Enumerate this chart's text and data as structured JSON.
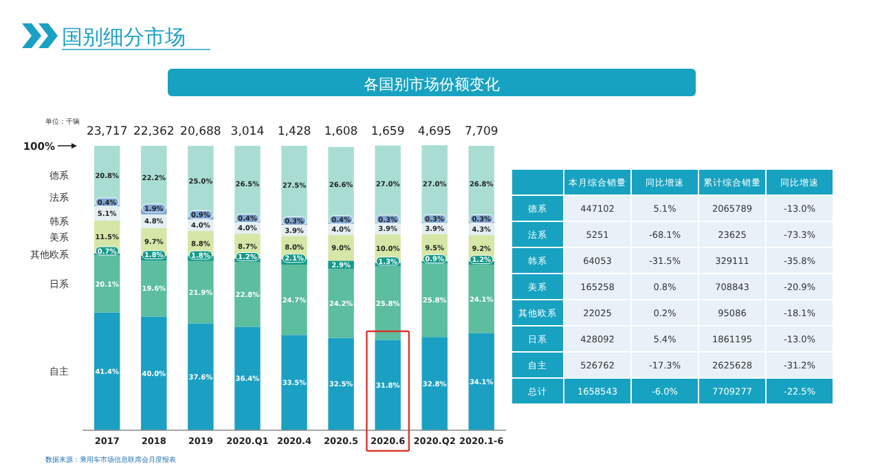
{
  "chart_data": [
    {
      "type": "bar",
      "title": "各国别市场份额变化",
      "stacked": true,
      "legend": "left",
      "grid": false,
      "categories": [
        "2017",
        "2018",
        "2019",
        "2020.Q1",
        "2020.4",
        "2020.5",
        "2020.6",
        "2020.Q2",
        "2020.1-6"
      ],
      "ylim": [
        0,
        101
      ],
      "yticks": [
        {
          "value": 100,
          "label": "100%"
        }
      ],
      "series": [
        {
          "name": "自主",
          "color": "#1ba0c4",
          "values": [
            41.4,
            40.0,
            37.6,
            36.4,
            33.5,
            32.5,
            31.8,
            32.8,
            34.1
          ],
          "value_labels": [
            "41.4%",
            "40.0%",
            "37.6%",
            "36.4%",
            "33.5%",
            "32.5%",
            "31.8%",
            "32.8%",
            "34.1%"
          ]
        },
        {
          "name": "日系",
          "color": "#5cbd9f",
          "values": [
            20.1,
            19.6,
            21.9,
            22.8,
            24.7,
            24.2,
            25.8,
            25.8,
            24.1
          ],
          "value_labels": [
            "20.1%",
            "19.6%",
            "21.9%",
            "22.8%",
            "24.7%",
            "24.2%",
            "25.8%",
            "25.8%",
            "24.1%"
          ]
        },
        {
          "name": "其他欧系",
          "color": "#13998a",
          "values": [
            0.7,
            1.8,
            1.8,
            1.2,
            2.1,
            2.9,
            1.3,
            0.9,
            1.2
          ],
          "value_labels": [
            "0.7%",
            "1.8%",
            "1.8%",
            "1.2%",
            "2.1%",
            "2.9%",
            "1.3%",
            "0.9%",
            "1.2%"
          ]
        },
        {
          "name": "美系",
          "color": "#d6e6a6",
          "values": [
            11.5,
            9.7,
            8.8,
            8.7,
            8.0,
            9.0,
            10.0,
            9.5,
            9.2
          ],
          "value_labels": [
            "11.5%",
            "9.7%",
            "8.8%",
            "8.7%",
            "8.0%",
            "9.0%",
            "10.0%",
            "9.5%",
            "9.2%"
          ]
        },
        {
          "name": "韩系",
          "color": "#e4eff3",
          "values": [
            5.1,
            4.8,
            4.0,
            4.0,
            3.9,
            4.0,
            3.9,
            3.9,
            4.3
          ],
          "value_labels": [
            "5.1%",
            "4.8%",
            "4.0%",
            "4.0%",
            "3.9%",
            "4.0%",
            "3.9%",
            "3.9%",
            "4.3%"
          ]
        },
        {
          "name": "法系",
          "color": "#7fa6d6",
          "values": [
            0.4,
            1.9,
            0.9,
            0.4,
            0.3,
            0.4,
            0.3,
            0.3,
            0.3
          ],
          "value_labels": [
            "0.4%",
            "1.9%",
            "0.9%",
            "0.4%",
            "0.3%",
            "0.4%",
            "0.3%",
            "0.3%",
            "0.3%"
          ]
        },
        {
          "name": "德系",
          "color": "#a9ddd3",
          "values": [
            20.8,
            22.2,
            25.0,
            26.5,
            27.5,
            26.6,
            27.0,
            27.0,
            26.8
          ],
          "value_labels": [
            "20.8%",
            "22.2%",
            "25.0%",
            "26.5%",
            "27.5%",
            "26.6%",
            "27.0%",
            "27.0%",
            "26.8%"
          ]
        }
      ],
      "annotations": [
        "国别细分市场",
        "单位：千辆",
        "数据来源：乘用车市场信息联席会月度报表",
        "23,717",
        "22,362",
        "20,688",
        "3,014",
        "1,428",
        "1,608",
        "1,659",
        "4,695",
        "7,709"
      ]
    },
    {
      "type": "other",
      "categories": [
        "本月综合销量",
        "同比增速",
        "累计综合销量",
        "同比增速"
      ],
      "y_categories": [
        "德系",
        "法系",
        "韩系",
        "美系",
        "其他欧系",
        "日系",
        "自主",
        "总计"
      ],
      "annotations": [
        "447102",
        "5.1%",
        "2065789",
        "-13.0%",
        "5251",
        "-68.1%",
        "23625",
        "-73.3%",
        "64053",
        "-31.5%",
        "329111",
        "-35.8%",
        "165258",
        "0.8%",
        "708843",
        "-20.9%",
        "22025",
        "0.2%",
        "95086",
        "-18.1%",
        "428092",
        "5.4%",
        "1861195",
        "-13.0%",
        "526762",
        "-17.3%",
        "2625628",
        "-31.2%",
        "1658543",
        "-6.0%",
        "7709277",
        "-22.5%"
      ]
    }
  ]
}
